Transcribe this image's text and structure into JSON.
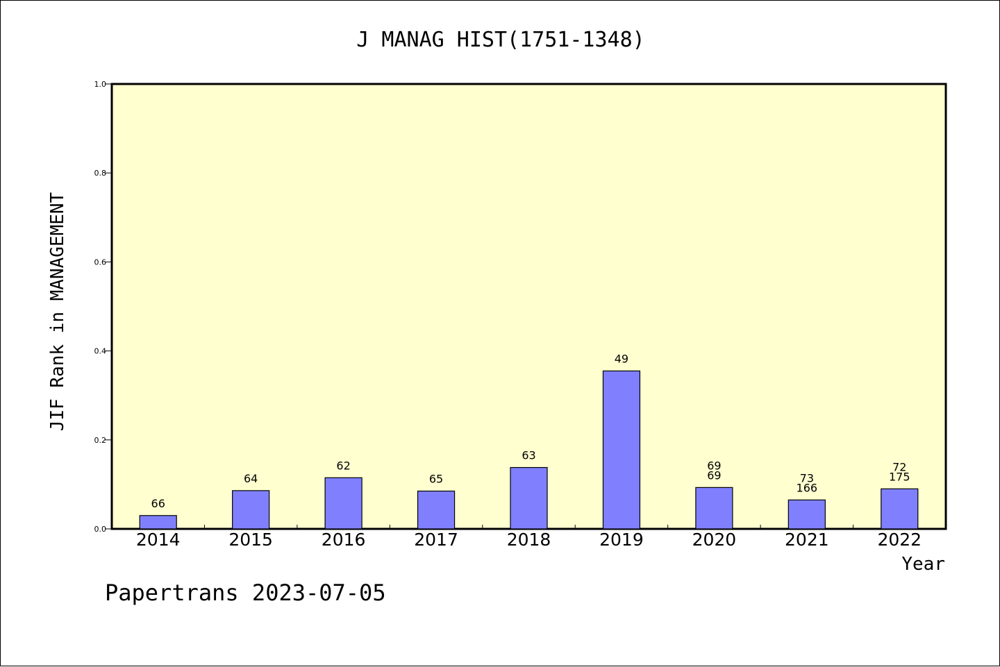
{
  "chart_data": {
    "type": "bar",
    "title": "J MANAG HIST(1751-1348)",
    "xlabel": "Year",
    "ylabel": "JIF Rank in MANAGEMENT",
    "ylim": [
      0,
      1.0
    ],
    "yticks": [
      "0.0",
      "0.2",
      "0.4",
      "0.6",
      "0.8",
      "1.0"
    ],
    "categories": [
      "2014",
      "2015",
      "2016",
      "2017",
      "2018",
      "2019",
      "2020",
      "2021",
      "2022"
    ],
    "values": [
      0.03,
      0.086,
      0.115,
      0.085,
      0.138,
      0.355,
      0.093,
      0.065,
      0.09
    ],
    "bar_labels": [
      [
        "66"
      ],
      [
        "64"
      ],
      [
        "62"
      ],
      [
        "65"
      ],
      [
        "63"
      ],
      [
        "49"
      ],
      [
        "69",
        "69"
      ],
      [
        "73",
        "166"
      ],
      [
        "72",
        "175"
      ]
    ],
    "grid": false,
    "colors": {
      "plot_background": "#ffffd0",
      "bar_fill": "#8080ff",
      "bar_stroke": "#000000"
    }
  },
  "footer": {
    "credit": "Papertrans 2023-07-05"
  }
}
